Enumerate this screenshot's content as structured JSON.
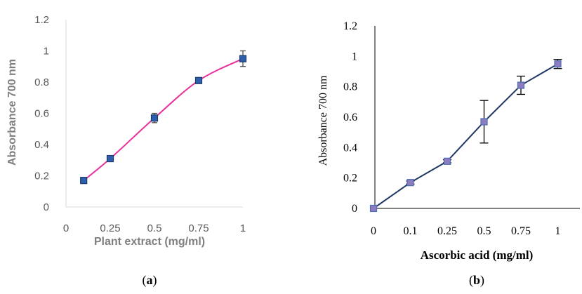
{
  "chart_data": [
    {
      "type": "line",
      "panel": "a",
      "caption_open": "(",
      "caption_letter": "a",
      "caption_close": ")",
      "xlabel": "Plant extract (mg/ml)",
      "ylabel": "Absorbance 700 nm",
      "x_ticks": [
        "0",
        "0.25",
        "0.5",
        "0.75",
        "1"
      ],
      "y_ticks": [
        "0",
        "0.2",
        "0.4",
        "0.6",
        "0.8",
        "1",
        "1.2"
      ],
      "xlim": [
        0,
        1
      ],
      "ylim": [
        0,
        1.2
      ],
      "grid": false,
      "line_style": "smooth",
      "colors": {
        "line": "#e8309c",
        "marker_fill": "#2e5fac",
        "marker_edge": "#1c3a6e",
        "axis": "#d9d9d9"
      },
      "series": [
        {
          "x": [
            0.1,
            0.25,
            0.5,
            0.75,
            1
          ],
          "y": [
            0.17,
            0.31,
            0.57,
            0.81,
            0.95
          ],
          "error": [
            0.01,
            0.01,
            0.03,
            0.01,
            0.05
          ]
        }
      ]
    },
    {
      "type": "line",
      "panel": "b",
      "caption_open": "(",
      "caption_letter": "b",
      "caption_close": ")",
      "xlabel": "Ascorbic acid (mg/ml)",
      "ylabel": "Absorbance 700 nm",
      "categories": [
        "0",
        "0.1",
        "0.25",
        "0.5",
        "0.75",
        "1"
      ],
      "y_ticks": [
        "0",
        "0.2",
        "0.4",
        "0.6",
        "0.8",
        "1",
        "1.2"
      ],
      "ylim": [
        0,
        1.2
      ],
      "grid": false,
      "line_style": "straight",
      "colors": {
        "line": "#1f3864",
        "marker_fill": "#8e7cc3",
        "marker_edge": "#4f6fb0",
        "axis": "#000000"
      },
      "series": [
        {
          "y": [
            0,
            0.17,
            0.31,
            0.57,
            0.81,
            0.95
          ],
          "error": [
            0,
            0.01,
            0.01,
            0.14,
            0.06,
            0.03
          ]
        }
      ]
    }
  ]
}
